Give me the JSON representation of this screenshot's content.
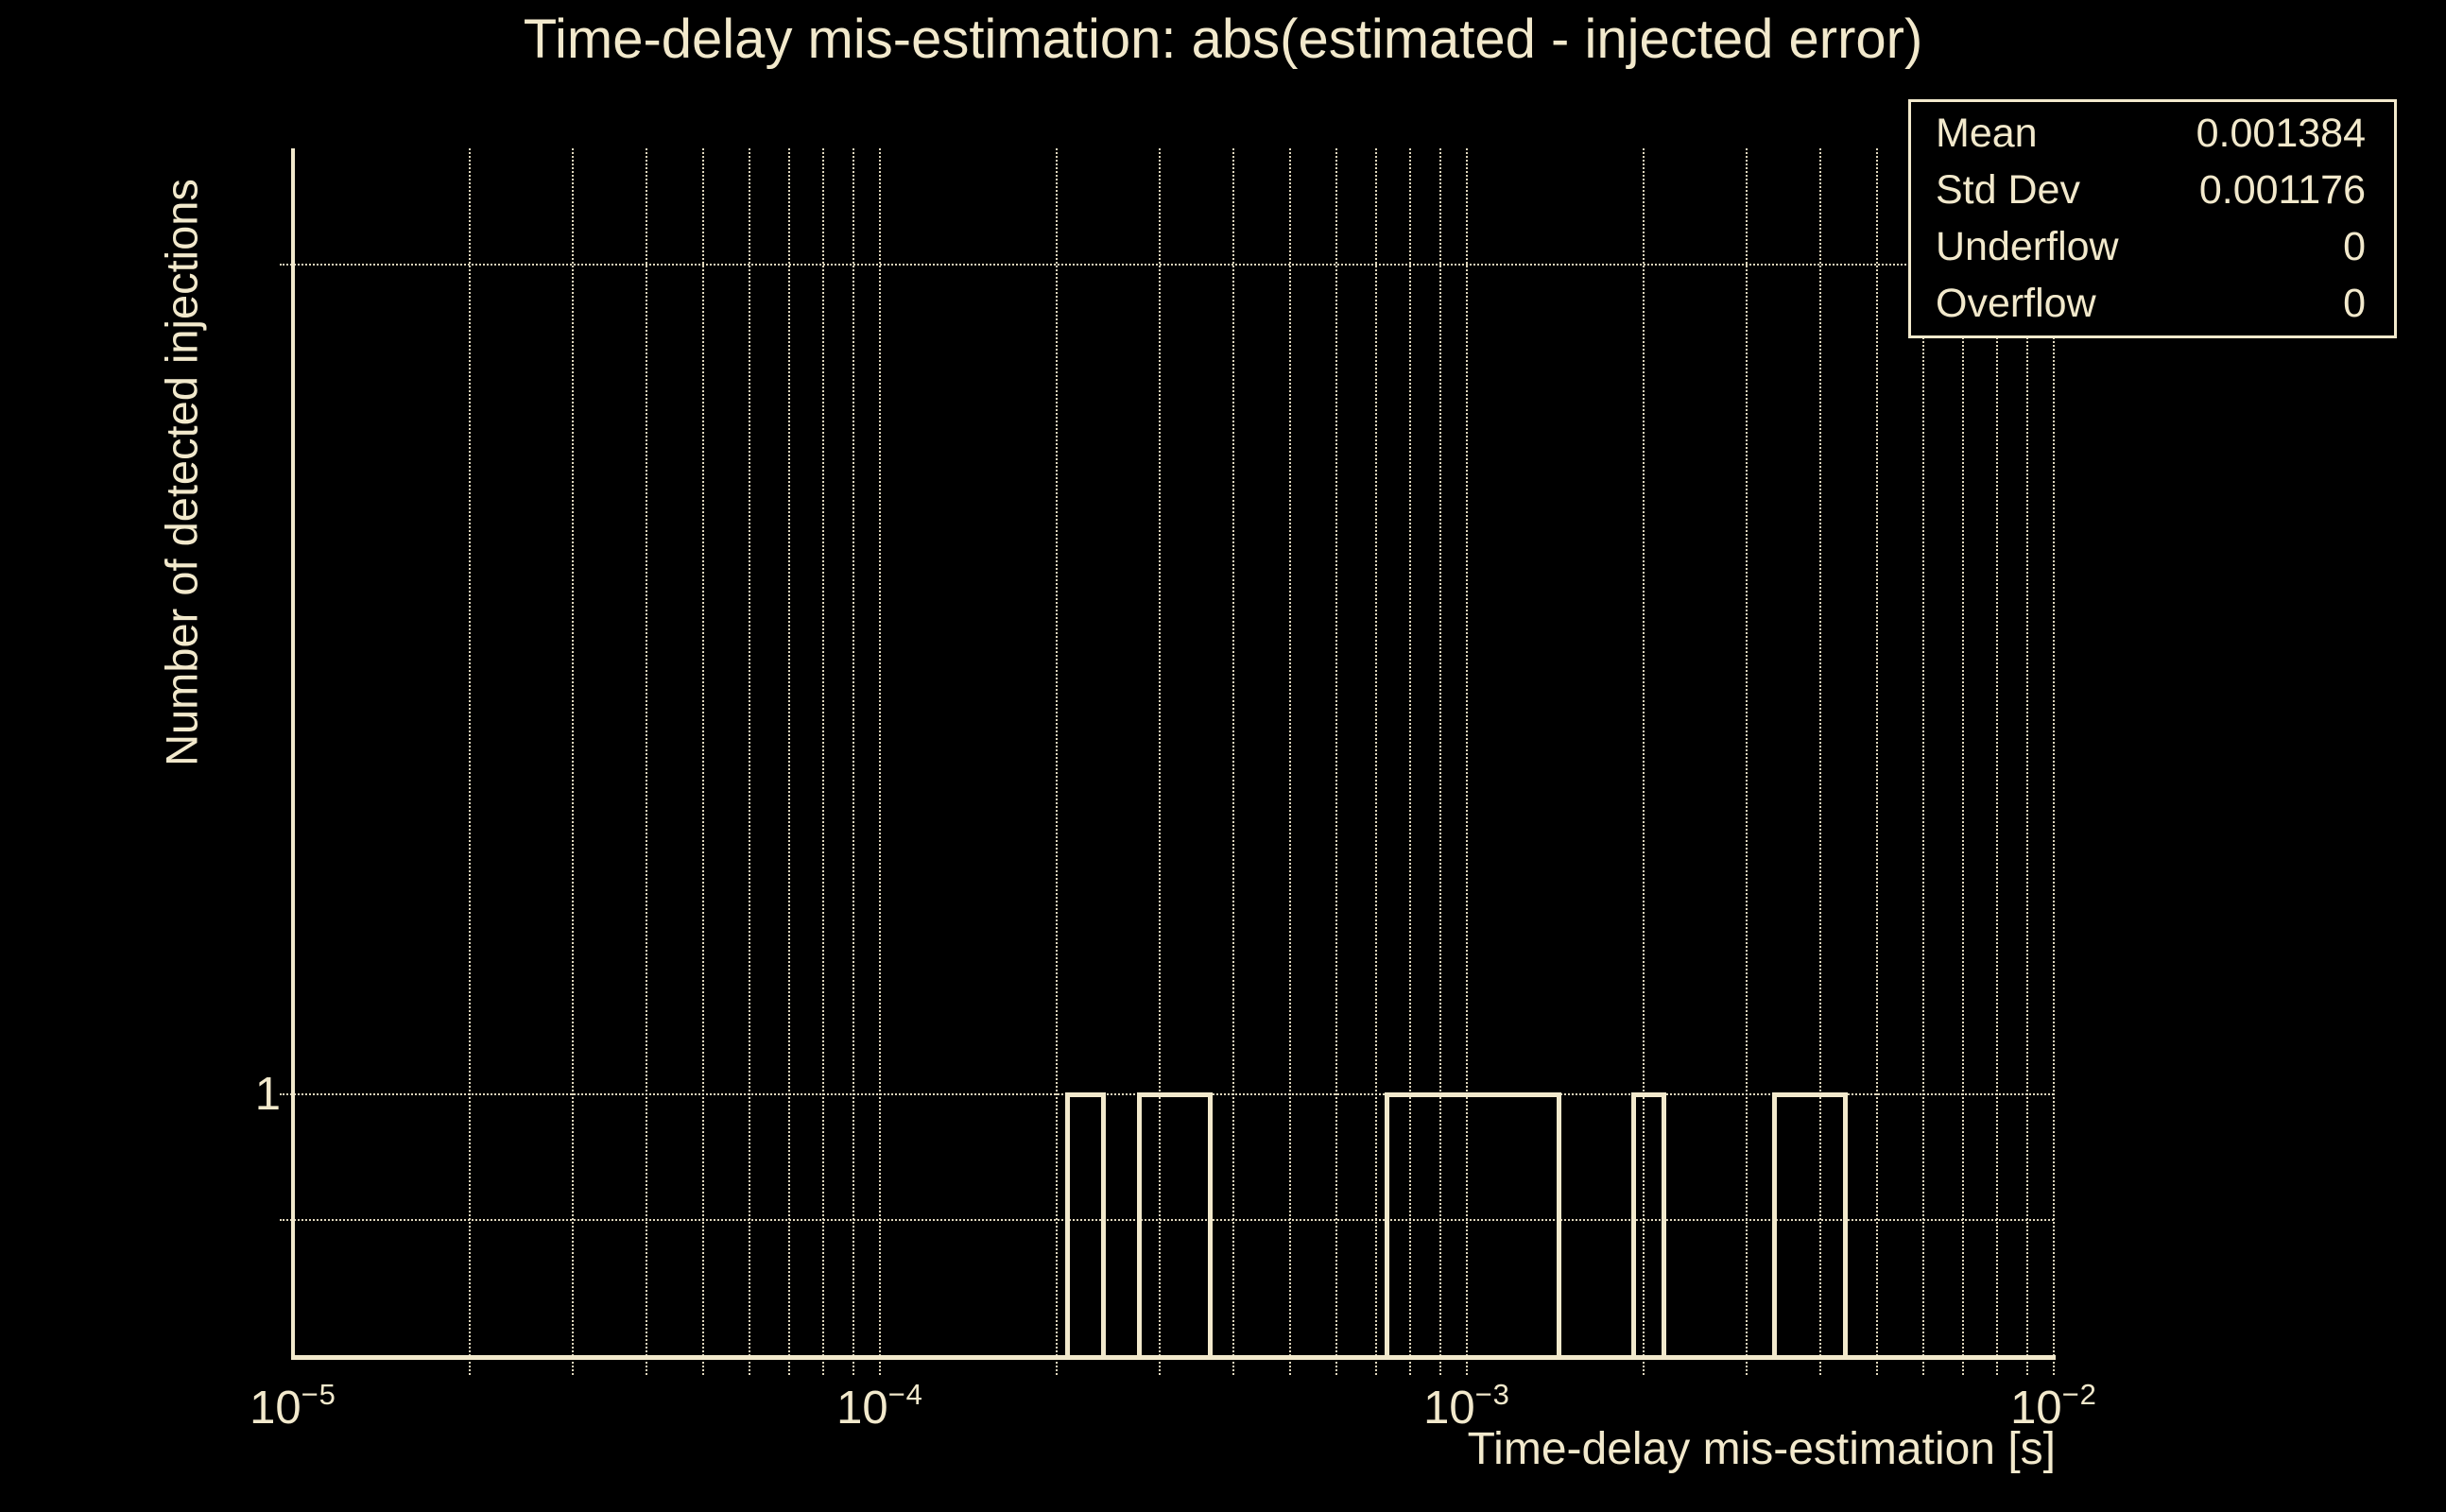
{
  "title": "Time-delay mis-estimation: abs(estimated - injected error)",
  "colors": {
    "background": "#000000",
    "foreground": "#f2e9cc"
  },
  "stats_box": {
    "rows": [
      {
        "label": "Mean",
        "value": "0.001384"
      },
      {
        "label": "Std Dev",
        "value": "0.001176"
      },
      {
        "label": "Underflow",
        "value": "0"
      },
      {
        "label": "Overflow",
        "value": "0"
      }
    ]
  },
  "axes": {
    "x": {
      "label": "Time-delay mis-estimation [s]",
      "scale": "log",
      "ticks": [
        {
          "base": "10",
          "exp": "−5",
          "value": 1e-05
        },
        {
          "base": "10",
          "exp": "−4",
          "value": 0.0001
        },
        {
          "base": "10",
          "exp": "−3",
          "value": 0.001
        },
        {
          "base": "10",
          "exp": "−2",
          "value": 0.01
        }
      ]
    },
    "y": {
      "label": "Number of detected injections",
      "scale": "log",
      "tick_label": "1",
      "tick_value": 1,
      "minor_gridline_values": [
        0.9,
        2
      ]
    }
  },
  "chart_data": {
    "type": "bar",
    "title": "Time-delay mis-estimation: abs(estimated - injected error)",
    "xlabel": "Time-delay mis-estimation [s]",
    "ylabel": "Number of detected injections",
    "x_scale": "log",
    "y_scale": "log",
    "xlim": [
      1e-05,
      0.01
    ],
    "ylim": [
      0.802,
      2.204
    ],
    "grid": "dotted gridlines at every log tick (2-9 minors and decades on x; 0.9, 1, 2 on y)",
    "legend": "none",
    "bars": [
      {
        "x_start": 0.000208,
        "x_end": 0.000241,
        "count": 1
      },
      {
        "x_start": 0.000276,
        "x_end": 0.000366,
        "count": 1
      },
      {
        "x_start": 0.00073,
        "x_end": 0.001438,
        "count": 1
      },
      {
        "x_start": 0.00192,
        "x_end": 0.00217,
        "count": 1
      },
      {
        "x_start": 0.00334,
        "x_end": 0.00442,
        "count": 1
      }
    ],
    "stats": {
      "mean": 0.001384,
      "std_dev": 0.001176,
      "underflow": 0,
      "overflow": 0
    }
  }
}
